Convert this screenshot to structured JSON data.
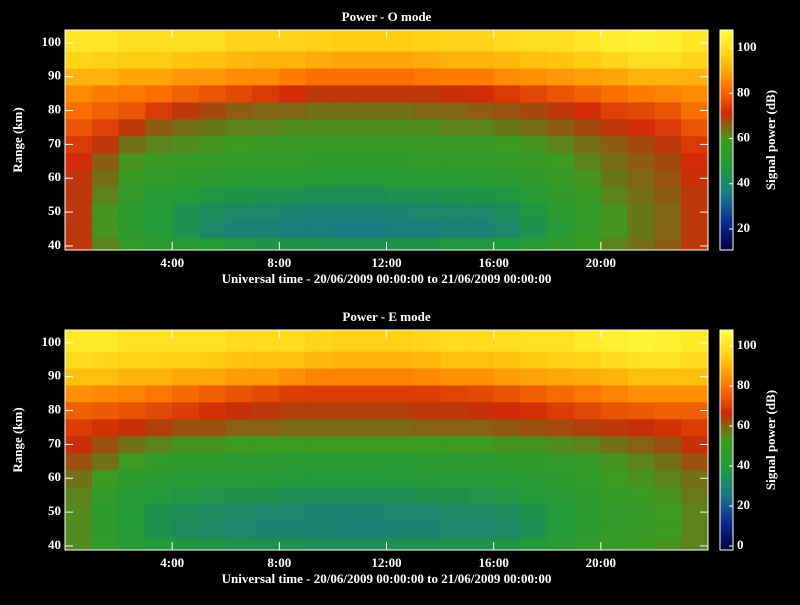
{
  "chart_data": [
    {
      "type": "heatmap",
      "title": "Power - O mode",
      "xlabel": "Universal time - 20/06/2009 00:00:00 to 21/06/2009 00:00:00",
      "ylabel": "Range (km)",
      "colorbar_label": "Signal power (dB)",
      "xbins": [
        0,
        1,
        2,
        3,
        4,
        5,
        6,
        7,
        8,
        9,
        10,
        11,
        12,
        13,
        14,
        15,
        16,
        17,
        18,
        19,
        20,
        21,
        22,
        23,
        24
      ],
      "ybins": [
        38,
        42.5,
        47.5,
        52.5,
        57.5,
        62.5,
        67.5,
        72.5,
        77.5,
        82.5,
        87.5,
        92.5,
        97.5,
        104
      ],
      "xlim": [
        0,
        24
      ],
      "ylim": [
        38.8,
        103.8
      ],
      "xticks": [
        {
          "value": 4,
          "label": "4:00"
        },
        {
          "value": 8,
          "label": "8:00"
        },
        {
          "value": 12,
          "label": "12:00"
        },
        {
          "value": 16,
          "label": "16:00"
        },
        {
          "value": 20,
          "label": "20:00"
        }
      ],
      "yticks": [
        40,
        50,
        60,
        70,
        80,
        90,
        100
      ],
      "clim": [
        10.7,
        108
      ],
      "cticks": [
        20,
        40,
        60,
        80,
        100
      ],
      "colormap": [
        "#000040",
        "#0a2a8c",
        "#1a7a8a",
        "#1f9a3a",
        "#3c9a20",
        "#d02a08",
        "#ff7a00",
        "#ffcc10",
        "#ffff40"
      ],
      "z": [
        [
          70,
          62,
          55,
          52,
          50,
          48,
          46,
          45,
          45,
          44,
          44,
          44,
          45,
          45,
          46,
          46,
          47,
          50,
          54,
          58,
          62,
          64,
          66,
          70
        ],
        [
          70,
          60,
          52,
          48,
          44,
          40,
          38,
          38,
          37,
          37,
          36,
          36,
          37,
          37,
          38,
          38,
          40,
          44,
          50,
          56,
          60,
          63,
          65,
          70
        ],
        [
          70,
          60,
          52,
          48,
          44,
          42,
          40,
          40,
          39,
          38,
          38,
          38,
          39,
          40,
          40,
          40,
          42,
          46,
          52,
          56,
          60,
          63,
          65,
          70
        ],
        [
          70,
          62,
          55,
          50,
          48,
          46,
          45,
          44,
          44,
          43,
          43,
          43,
          44,
          44,
          45,
          45,
          46,
          50,
          54,
          58,
          62,
          64,
          66,
          70
        ],
        [
          70,
          64,
          58,
          55,
          53,
          52,
          51,
          50,
          50,
          50,
          49,
          49,
          50,
          50,
          50,
          51,
          52,
          54,
          57,
          60,
          63,
          65,
          67,
          71
        ],
        [
          72,
          66,
          60,
          58,
          57,
          56,
          55,
          55,
          55,
          54,
          54,
          54,
          54,
          55,
          55,
          55,
          56,
          57,
          59,
          62,
          64,
          66,
          68,
          72
        ],
        [
          74,
          70,
          64,
          62,
          61,
          60,
          59,
          58,
          58,
          57,
          57,
          57,
          57,
          58,
          58,
          58,
          59,
          60,
          62,
          64,
          66,
          68,
          70,
          74
        ],
        [
          78,
          75,
          70,
          66,
          64,
          63,
          62,
          62,
          61,
          61,
          61,
          61,
          61,
          61,
          62,
          62,
          63,
          64,
          66,
          68,
          70,
          72,
          74,
          78
        ],
        [
          82,
          80,
          78,
          74,
          70,
          68,
          66,
          65,
          65,
          64,
          64,
          64,
          64,
          65,
          65,
          66,
          67,
          68,
          70,
          72,
          75,
          76,
          78,
          82
        ],
        [
          86,
          84,
          83,
          82,
          80,
          78,
          76,
          74,
          72,
          70,
          70,
          70,
          70,
          70,
          71,
          72,
          74,
          76,
          78,
          80,
          82,
          84,
          85,
          86
        ],
        [
          92,
          92,
          90,
          90,
          88,
          88,
          86,
          86,
          84,
          82,
          82,
          82,
          82,
          83,
          84,
          84,
          86,
          87,
          88,
          89,
          90,
          92,
          92,
          92
        ],
        [
          98,
          97,
          96,
          96,
          95,
          94,
          93,
          92,
          92,
          91,
          90,
          90,
          90,
          91,
          92,
          92,
          93,
          94,
          95,
          96,
          98,
          100,
          100,
          98
        ],
        [
          102,
          102,
          100,
          100,
          100,
          100,
          98,
          98,
          98,
          97,
          96,
          96,
          96,
          97,
          98,
          98,
          99,
          100,
          100,
          102,
          104,
          105,
          104,
          102
        ]
      ]
    },
    {
      "type": "heatmap",
      "title": "Power - E mode",
      "xlabel": "Universal time - 20/06/2009 00:00:00 to 21/06/2009 00:00:00",
      "ylabel": "Range (km)",
      "colorbar_label": "Signal power (dB)",
      "xbins": [
        0,
        1,
        2,
        3,
        4,
        5,
        6,
        7,
        8,
        9,
        10,
        11,
        12,
        13,
        14,
        15,
        16,
        17,
        18,
        19,
        20,
        21,
        22,
        23,
        24
      ],
      "ybins": [
        38,
        42.5,
        47.5,
        52.5,
        57.5,
        62.5,
        67.5,
        72.5,
        77.5,
        82.5,
        87.5,
        92.5,
        97.5,
        104
      ],
      "xlim": [
        0,
        24
      ],
      "ylim": [
        38.8,
        103.8
      ],
      "xticks": [
        {
          "value": 4,
          "label": "4:00"
        },
        {
          "value": 8,
          "label": "8:00"
        },
        {
          "value": 12,
          "label": "12:00"
        },
        {
          "value": 16,
          "label": "16:00"
        },
        {
          "value": 20,
          "label": "20:00"
        }
      ],
      "yticks": [
        40,
        50,
        60,
        70,
        80,
        90,
        100
      ],
      "clim": [
        -2,
        108
      ],
      "cticks": [
        0,
        20,
        40,
        60,
        80,
        100
      ],
      "colormap": [
        "#000040",
        "#0a2a8c",
        "#1a7a8a",
        "#1f9a3a",
        "#3c9a20",
        "#d02a08",
        "#ff7a00",
        "#ffcc10",
        "#ffff40"
      ],
      "z": [
        [
          55,
          48,
          42,
          40,
          38,
          37,
          36,
          35,
          35,
          34,
          34,
          34,
          35,
          35,
          36,
          36,
          37,
          40,
          44,
          48,
          50,
          52,
          54,
          56
        ],
        [
          55,
          46,
          40,
          36,
          33,
          32,
          31,
          30,
          30,
          30,
          29,
          29,
          30,
          30,
          31,
          31,
          32,
          35,
          40,
          45,
          48,
          50,
          52,
          56
        ],
        [
          55,
          46,
          40,
          36,
          34,
          33,
          32,
          31,
          31,
          30,
          30,
          30,
          31,
          31,
          32,
          32,
          33,
          36,
          40,
          44,
          48,
          50,
          52,
          56
        ],
        [
          56,
          48,
          42,
          40,
          38,
          37,
          36,
          36,
          35,
          35,
          35,
          35,
          35,
          36,
          36,
          37,
          38,
          40,
          43,
          46,
          50,
          52,
          54,
          57
        ],
        [
          58,
          52,
          46,
          44,
          43,
          42,
          42,
          41,
          41,
          40,
          40,
          40,
          41,
          41,
          42,
          42,
          43,
          44,
          46,
          48,
          52,
          54,
          56,
          58
        ],
        [
          62,
          58,
          52,
          48,
          46,
          46,
          45,
          45,
          44,
          44,
          44,
          44,
          44,
          45,
          45,
          45,
          46,
          47,
          48,
          50,
          54,
          56,
          58,
          62
        ],
        [
          66,
          62,
          58,
          56,
          54,
          54,
          53,
          52,
          52,
          52,
          52,
          52,
          52,
          52,
          53,
          53,
          54,
          54,
          55,
          56,
          58,
          60,
          62,
          66
        ],
        [
          70,
          68,
          66,
          64,
          62,
          62,
          60,
          60,
          59,
          59,
          59,
          59,
          59,
          60,
          60,
          60,
          61,
          62,
          63,
          64,
          65,
          66,
          68,
          70
        ],
        [
          76,
          75,
          74,
          72,
          70,
          68,
          66,
          65,
          64,
          64,
          64,
          64,
          64,
          65,
          65,
          66,
          67,
          68,
          70,
          72,
          74,
          75,
          76,
          76
        ],
        [
          84,
          83,
          82,
          80,
          78,
          76,
          74,
          72,
          70,
          70,
          70,
          70,
          70,
          70,
          71,
          72,
          74,
          76,
          78,
          80,
          82,
          84,
          84,
          84
        ],
        [
          92,
          92,
          90,
          90,
          88,
          88,
          86,
          86,
          84,
          82,
          82,
          82,
          82,
          83,
          84,
          84,
          86,
          87,
          88,
          89,
          90,
          92,
          92,
          92
        ],
        [
          98,
          97,
          96,
          96,
          95,
          94,
          93,
          92,
          92,
          91,
          90,
          90,
          90,
          91,
          92,
          92,
          93,
          94,
          95,
          96,
          98,
          100,
          100,
          98
        ],
        [
          102,
          102,
          100,
          100,
          100,
          100,
          98,
          98,
          98,
          97,
          96,
          96,
          96,
          97,
          98,
          98,
          99,
          100,
          100,
          102,
          104,
          105,
          104,
          102
        ]
      ]
    }
  ]
}
